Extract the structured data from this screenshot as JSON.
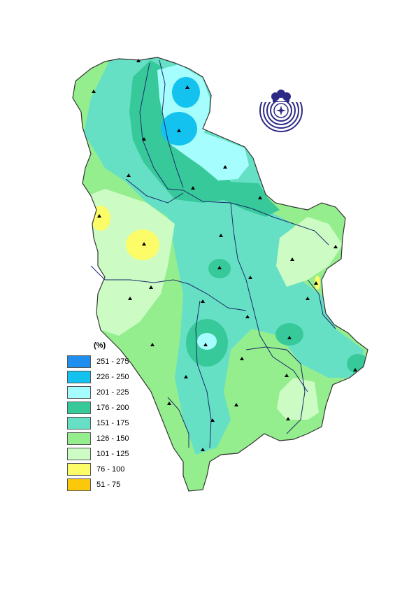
{
  "legend": {
    "title": "(%)",
    "items": [
      {
        "label": "251 - 275",
        "color": "#1f8fef"
      },
      {
        "label": "226 - 250",
        "color": "#14c2f0"
      },
      {
        "label": "201 - 225",
        "color": "#a6fdfd"
      },
      {
        "label": "176 - 200",
        "color": "#38c99a"
      },
      {
        "label": "151 - 175",
        "color": "#66e0c4"
      },
      {
        "label": "126 - 150",
        "color": "#95ee8e"
      },
      {
        "label": "101 - 125",
        "color": "#ccfcc4"
      },
      {
        "label": "76 - 100",
        "color": "#fcfc68"
      },
      {
        "label": "51 - 75",
        "color": "#fcc80a"
      }
    ]
  },
  "map": {
    "border_color": "#333333",
    "river_color": "#1b2a6b",
    "station_color": "#000000",
    "logo_color": "#2d2a86"
  }
}
